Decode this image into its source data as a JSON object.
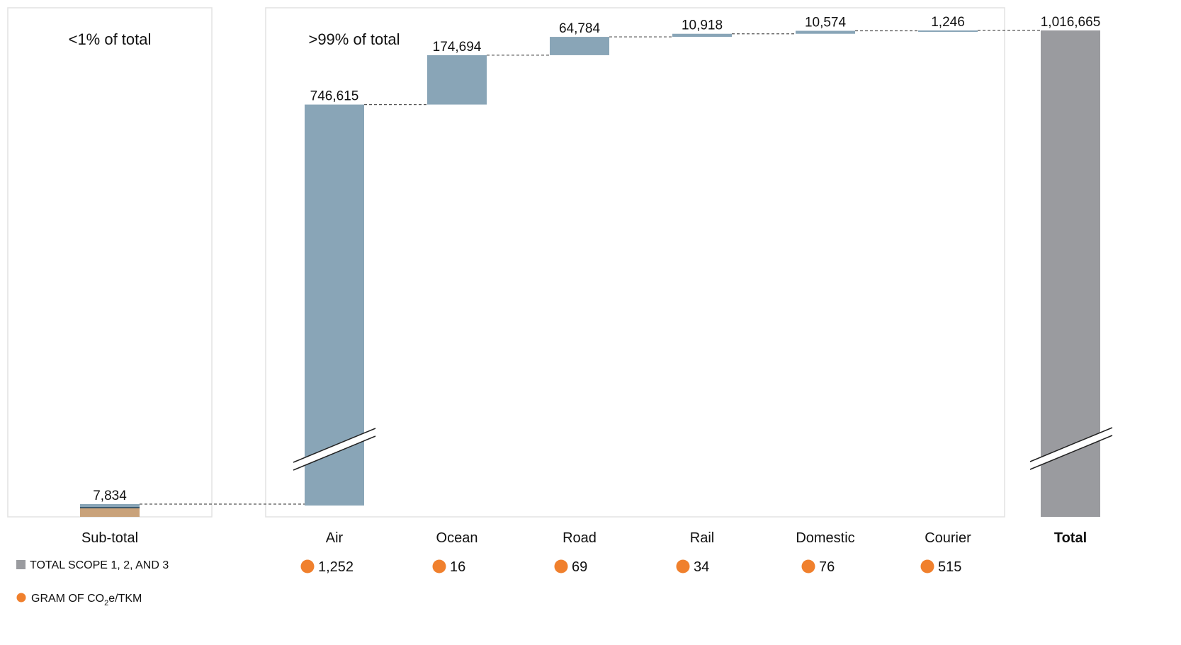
{
  "chart_data": {
    "type": "bar",
    "subtype": "waterfall",
    "panels": [
      {
        "title": "<1% of total"
      },
      {
        "title": ">99% of total"
      }
    ],
    "categories": [
      "Sub-total",
      "Air",
      "Ocean",
      "Road",
      "Rail",
      "Domestic",
      "Courier",
      "Total"
    ],
    "values": [
      7834,
      746615,
      174694,
      64784,
      10918,
      10574,
      1246,
      1016665
    ],
    "value_labels": [
      "7,834",
      "746,615",
      "174,694",
      "64,784",
      "10,918",
      "10,574",
      "1,246",
      "1,016,665"
    ],
    "intensity": {
      "categories": [
        "Air",
        "Ocean",
        "Road",
        "Rail",
        "Domestic",
        "Courier"
      ],
      "values": [
        1252,
        16,
        69,
        34,
        76,
        515
      ],
      "labels": [
        "1,252",
        "16",
        "69",
        "34",
        "76",
        "515"
      ]
    },
    "legend": {
      "placement": "bottom-left",
      "items": [
        {
          "text": "TOTAL SCOPE 1, 2, AND 3",
          "marker": "square",
          "color": "#9a9b9f"
        },
        {
          "text": "GRAM OF CO2e/TKM",
          "text_main": "GRAM OF CO",
          "text_sub": "2",
          "text_rest": "e/TKM",
          "marker": "circle",
          "color": "#f0802d"
        }
      ]
    },
    "axis_break": true,
    "colors": {
      "segment": "#89a5b7",
      "total": "#9a9b9f",
      "subtotal_base": "#c9a27a",
      "subtotal_line": "#3c5a6e",
      "intensity_dot": "#f0802d",
      "connector": "#555555",
      "panel_border": "#e2e2e2"
    }
  }
}
